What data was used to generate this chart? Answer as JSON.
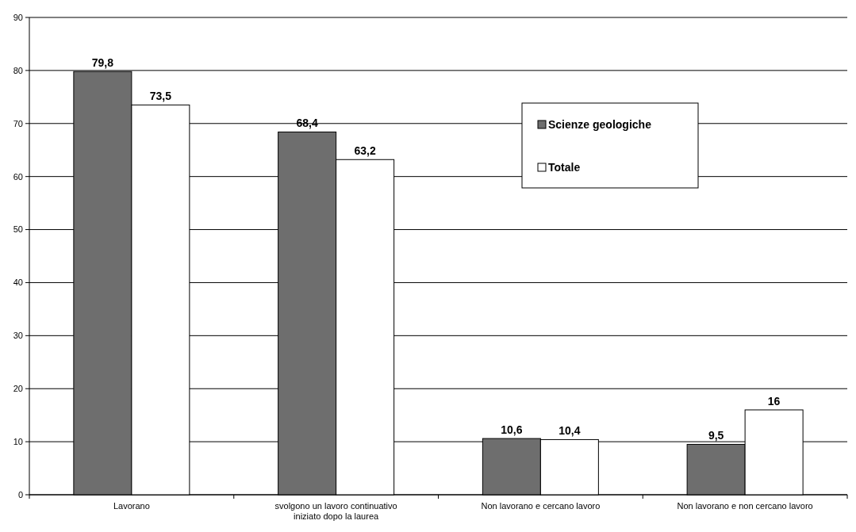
{
  "chart_data": {
    "type": "bar",
    "categories": [
      "Lavorano",
      "svolgono un lavoro continuativo iniziato dopo la laurea",
      "Non lavorano e cercano lavoro",
      "Non lavorano e non cercano lavoro"
    ],
    "series": [
      {
        "name": "Scienze geologiche",
        "color": "#6e6e6e",
        "values": [
          79.8,
          68.4,
          10.6,
          9.5
        ]
      },
      {
        "name": "Totale",
        "color": "#ffffff",
        "values": [
          73.5,
          63.2,
          10.4,
          16
        ]
      }
    ],
    "value_labels": [
      [
        "79,8",
        "68,4",
        "10,6",
        "9,5"
      ],
      [
        "73,5",
        "63,2",
        "10,4",
        "16"
      ]
    ],
    "ylim": [
      0,
      90
    ],
    "yticks": [
      0,
      10,
      20,
      30,
      40,
      50,
      60,
      70,
      80,
      90
    ],
    "grid": "y",
    "legend": "top right"
  }
}
